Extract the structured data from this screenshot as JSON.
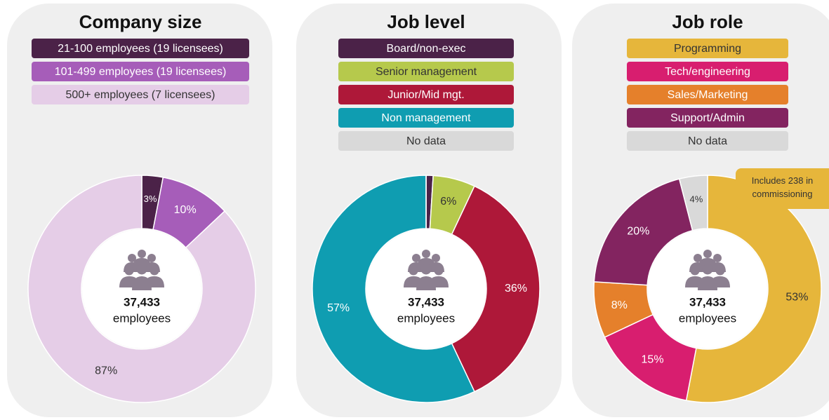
{
  "chart_data": [
    {
      "type": "donut",
      "title": "Company size",
      "categories": [
        "21-100 employees (19 licensees)",
        "101-499 employees (19 licensees)",
        "500+ employees (7 licensees)"
      ],
      "values": [
        3,
        10,
        87
      ],
      "value_labels": [
        "3%",
        "10%",
        "87%"
      ],
      "colors": [
        "#4b2248",
        "#a65db9",
        "#e5cde7"
      ],
      "center_label": "37,433",
      "center_sublabel": "employees"
    },
    {
      "type": "donut",
      "title": "Job level",
      "categories": [
        "Board/non-exec",
        "Senior management",
        "Junior/Mid mgt.",
        "Non management",
        "No data"
      ],
      "values": [
        1,
        6,
        36,
        57,
        0
      ],
      "value_labels": [
        null,
        "6%",
        "36%",
        "57%",
        null
      ],
      "colors": [
        "#4b2248",
        "#b6c94c",
        "#ae1839",
        "#0f9db1",
        "#d9d9d9"
      ],
      "center_label": "37,433",
      "center_sublabel": "employees"
    },
    {
      "type": "donut",
      "title": "Job role",
      "categories": [
        "Programming",
        "Tech/engineering",
        "Sales/Marketing",
        "Support/Admin",
        "No data"
      ],
      "values": [
        53,
        15,
        8,
        20,
        4
      ],
      "value_labels": [
        "53%",
        "15%",
        "8%",
        "20%",
        "4%"
      ],
      "colors": [
        "#e6b63b",
        "#d81e6f",
        "#e5802b",
        "#832460",
        "#d9d9d9"
      ],
      "center_label": "37,433",
      "center_sublabel": "employees",
      "annotation": "Includes 238 in commissioning"
    }
  ]
}
